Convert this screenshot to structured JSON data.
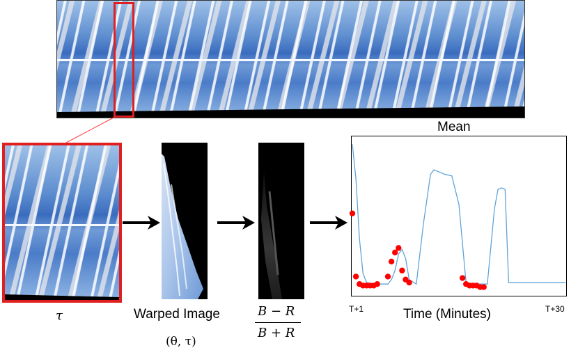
{
  "labels": {
    "tau": "τ",
    "warped_title": "Warped Image",
    "warped_sub": "(θ, τ)",
    "ratio_num": "B − R",
    "ratio_den": "B + R"
  },
  "chart_data": {
    "type": "line",
    "title": "Mean",
    "xlabel": "Time (Minutes)",
    "x_tick_labels": [
      "T+1",
      "T+30"
    ],
    "grid": false,
    "colors": {
      "line": "#5fa3d8",
      "points": "#ff0000"
    },
    "line": {
      "x": [
        0,
        0.5,
        1,
        1.5,
        2,
        3,
        4,
        4.5,
        5,
        5.5,
        6,
        6.5,
        7,
        7.5,
        8,
        9,
        10,
        11,
        11.5,
        12,
        13,
        14,
        15,
        16,
        16.5,
        17,
        17.5,
        18,
        19,
        20,
        20.5,
        21,
        21.5,
        22,
        29,
        30
      ],
      "y": [
        0.98,
        0.75,
        0.35,
        0.12,
        0.06,
        0.05,
        0.05,
        0.05,
        0.05,
        0.08,
        0.14,
        0.25,
        0.28,
        0.22,
        0.08,
        0.05,
        0.45,
        0.78,
        0.81,
        0.8,
        0.78,
        0.77,
        0.58,
        0.06,
        0.05,
        0.05,
        0.05,
        0.05,
        0.05,
        0.55,
        0.68,
        0.69,
        0.68,
        0.06,
        0.06,
        0.06
      ]
    },
    "points": {
      "x": [
        0,
        0.5,
        1,
        1.5,
        2,
        2.5,
        3,
        3.5,
        5,
        5.5,
        6,
        6.5,
        7,
        7.5,
        8,
        15.5,
        16,
        16.5,
        17,
        17.5,
        18,
        18.5
      ],
      "y": [
        0.52,
        0.1,
        0.05,
        0.04,
        0.04,
        0.04,
        0.04,
        0.05,
        0.1,
        0.2,
        0.26,
        0.29,
        0.14,
        0.08,
        0.06,
        0.09,
        0.05,
        0.04,
        0.04,
        0.04,
        0.03,
        0.03
      ]
    },
    "xlim": [
      0,
      30
    ],
    "ylim": [
      0,
      1
    ]
  }
}
